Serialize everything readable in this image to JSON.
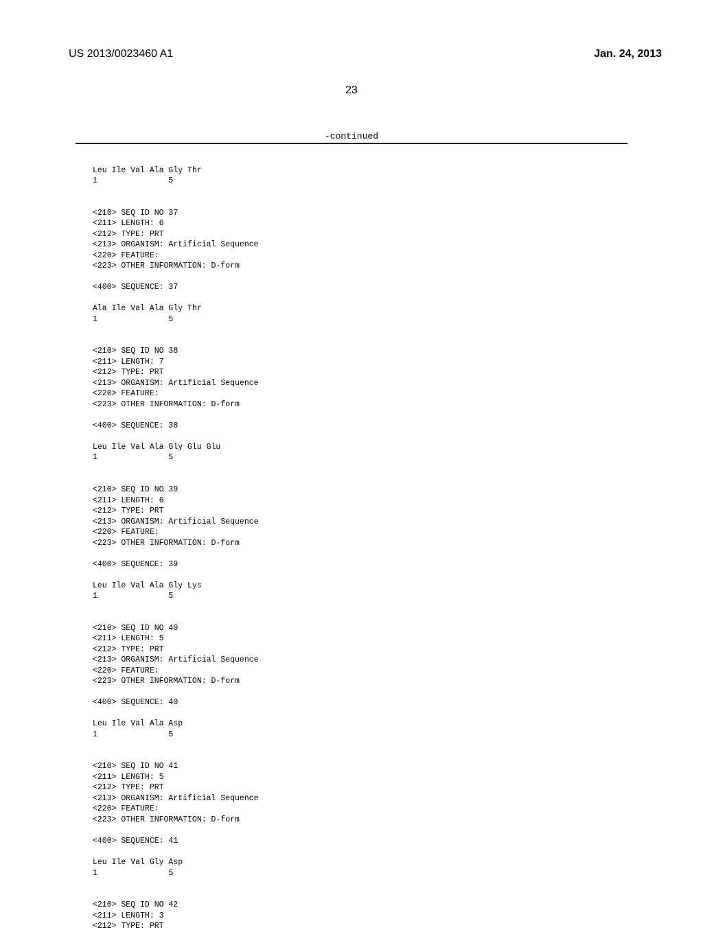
{
  "header": {
    "patentNumber": "US 2013/0023460 A1",
    "date": "Jan. 24, 2013",
    "pageNumber": "23",
    "continued": "-continued"
  },
  "sequences": [
    {
      "peptide": "Leu Ile Val Ala Gly Thr",
      "positions": "1               5"
    },
    {
      "header": [
        "<210> SEQ ID NO 37",
        "<211> LENGTH: 6",
        "<212> TYPE: PRT",
        "<213> ORGANISM: Artificial Sequence",
        "<220> FEATURE:",
        "<223> OTHER INFORMATION: D-form"
      ],
      "sequenceLabel": "<400> SEQUENCE: 37",
      "peptide": "Ala Ile Val Ala Gly Thr",
      "positions": "1               5"
    },
    {
      "header": [
        "<210> SEQ ID NO 38",
        "<211> LENGTH: 7",
        "<212> TYPE: PRT",
        "<213> ORGANISM: Artificial Sequence",
        "<220> FEATURE:",
        "<223> OTHER INFORMATION: D-form"
      ],
      "sequenceLabel": "<400> SEQUENCE: 38",
      "peptide": "Leu Ile Val Ala Gly Glu Glu",
      "positions": "1               5"
    },
    {
      "header": [
        "<210> SEQ ID NO 39",
        "<211> LENGTH: 6",
        "<212> TYPE: PRT",
        "<213> ORGANISM: Artificial Sequence",
        "<220> FEATURE:",
        "<223> OTHER INFORMATION: D-form"
      ],
      "sequenceLabel": "<400> SEQUENCE: 39",
      "peptide": "Leu Ile Val Ala Gly Lys",
      "positions": "1               5"
    },
    {
      "header": [
        "<210> SEQ ID NO 40",
        "<211> LENGTH: 5",
        "<212> TYPE: PRT",
        "<213> ORGANISM: Artificial Sequence",
        "<220> FEATURE:",
        "<223> OTHER INFORMATION: D-form"
      ],
      "sequenceLabel": "<400> SEQUENCE: 40",
      "peptide": "Leu Ile Val Ala Asp",
      "positions": "1               5"
    },
    {
      "header": [
        "<210> SEQ ID NO 41",
        "<211> LENGTH: 5",
        "<212> TYPE: PRT",
        "<213> ORGANISM: Artificial Sequence",
        "<220> FEATURE:",
        "<223> OTHER INFORMATION: D-form"
      ],
      "sequenceLabel": "<400> SEQUENCE: 41",
      "peptide": "Leu Ile Val Gly Asp",
      "positions": "1               5"
    },
    {
      "header": [
        "<210> SEQ ID NO 42",
        "<211> LENGTH: 3",
        "<212> TYPE: PRT"
      ]
    }
  ]
}
